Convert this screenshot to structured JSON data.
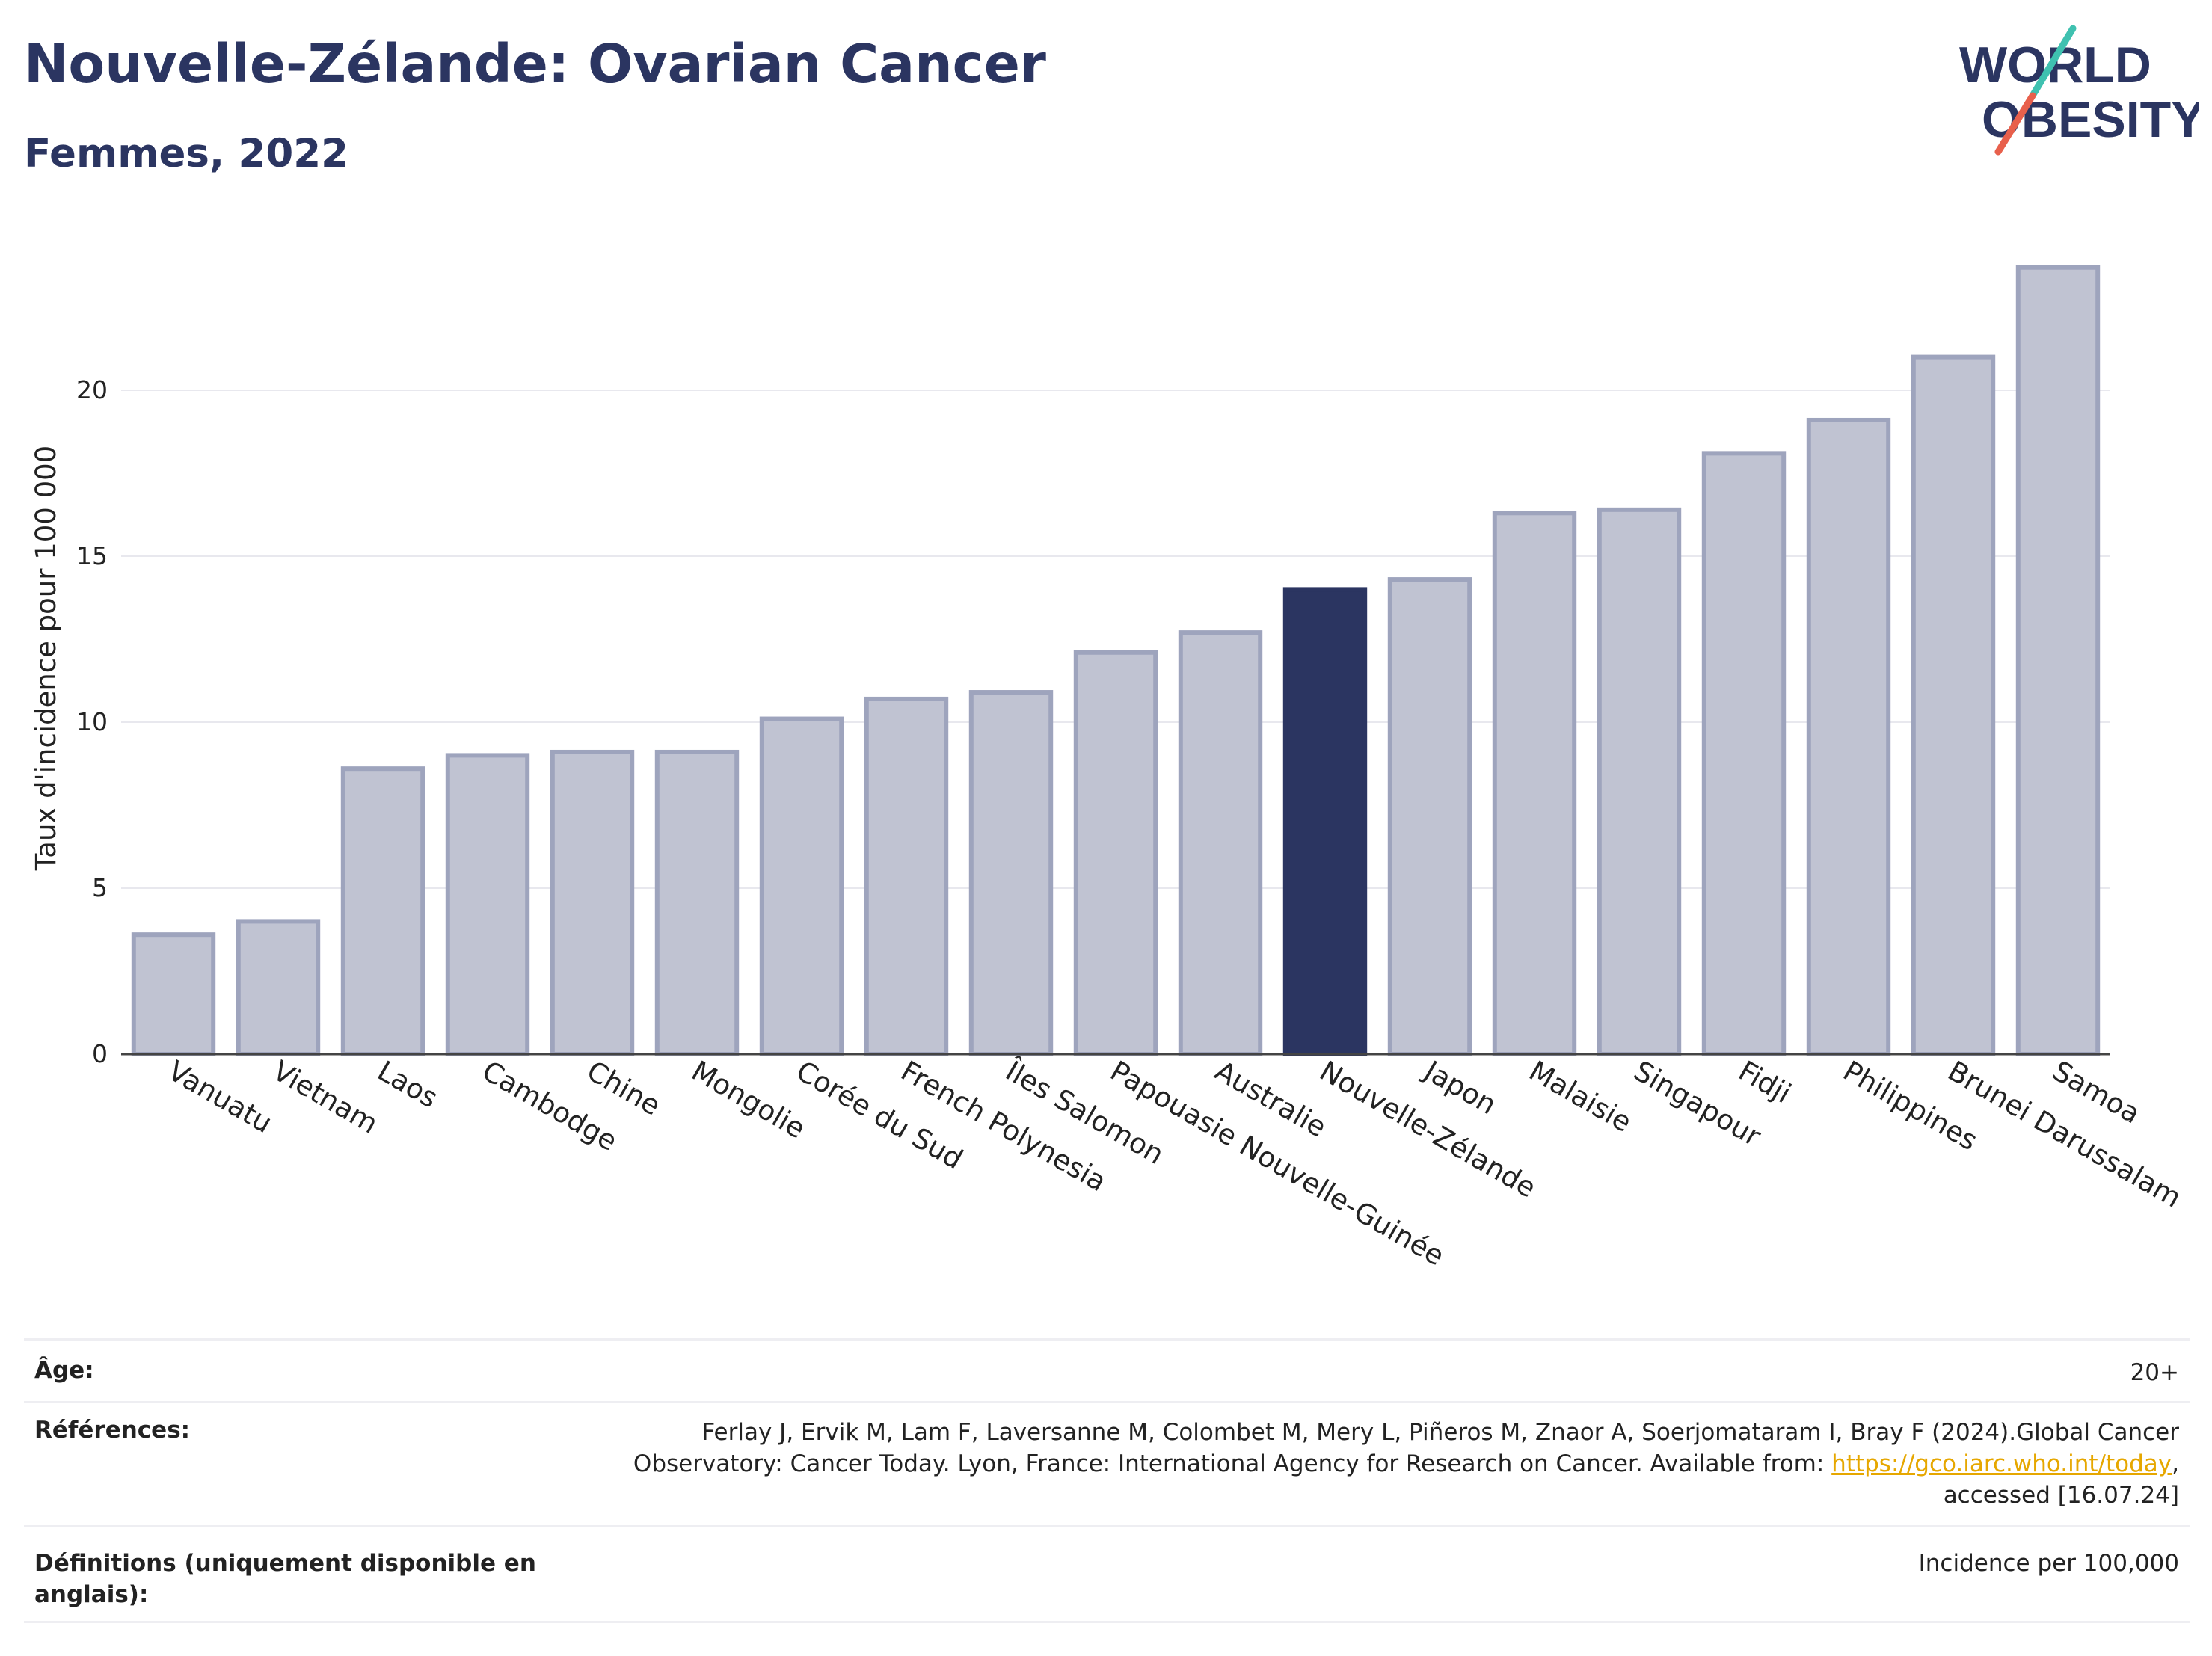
{
  "header": {
    "title": "Nouvelle-Zélande: Ovarian Cancer",
    "subtitle": "Femmes, 2022",
    "logo_line1": "WORLD",
    "logo_line2": "OBESITY"
  },
  "colors": {
    "bar": "#c0c3d2",
    "bar_edge": "#9ea4bd",
    "highlight": "#2b3561",
    "text": "#2b3561",
    "grid": "#e8e8ee",
    "link": "#e6a700",
    "logo_accent_teal": "#3fc1b0",
    "logo_accent_red": "#e8604c"
  },
  "chart_data": {
    "type": "bar",
    "ylabel": "Taux d'incidence pour 100 000",
    "ylim": [
      0,
      25
    ],
    "yticks": [
      0,
      5,
      10,
      15,
      20
    ],
    "highlight": "Nouvelle-Zélande",
    "grid": true,
    "categories": [
      "Vanuatu",
      "Vietnam",
      "Laos",
      "Cambodge",
      "Chine",
      "Mongolie",
      "Corée du Sud",
      "French Polynesia",
      "Îles Salomon",
      "Papouasie Nouvelle-Guinée",
      "Australie",
      "Nouvelle-Zélande",
      "Japon",
      "Malaisie",
      "Singapour",
      "Fidji",
      "Philippines",
      "Brunei Darussalam",
      "Samoa"
    ],
    "values": [
      3.6,
      4.0,
      8.6,
      9.0,
      9.1,
      9.1,
      10.1,
      10.7,
      10.9,
      12.1,
      12.7,
      14.0,
      14.3,
      16.3,
      16.4,
      18.1,
      19.1,
      21.0,
      23.7
    ]
  },
  "meta": {
    "age_label": "Âge:",
    "age_value": "20+",
    "refs_label": "Références:",
    "refs_line1": "Ferlay J, Ervik M, Lam F, Laversanne M, Colombet M, Mery L, Piñeros M, Znaor A, Soerjomataram I, Bray F (2024).Global Cancer",
    "refs_line2_pre": "Observatory: Cancer Today. Lyon, France: International Agency for Research on Cancer. Available from: ",
    "refs_link": "https://gco.iarc.who.int/today",
    "refs_line2_post": ",",
    "refs_line3": "accessed [16.07.24]",
    "defs_label_line1": "Définitions (uniquement disponible en",
    "defs_label_line2": "anglais):",
    "defs_value": "Incidence per 100,000"
  }
}
